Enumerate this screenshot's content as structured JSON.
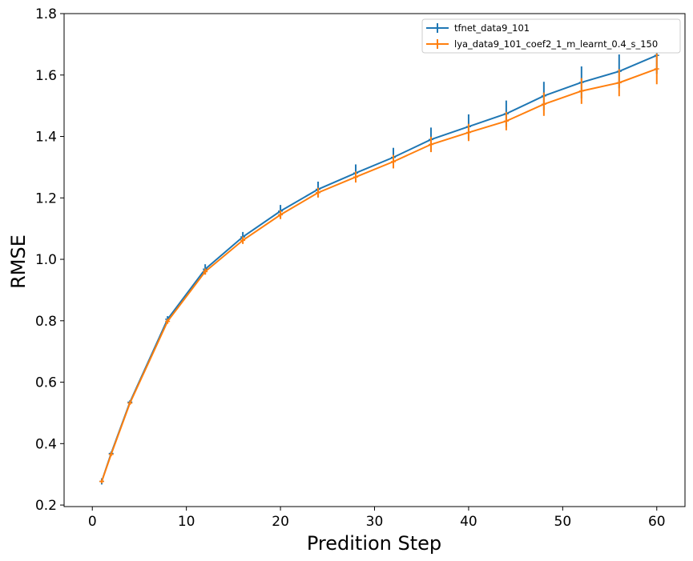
{
  "chart_data": {
    "type": "line",
    "xlabel": "Predition Step",
    "ylabel": "RMSE",
    "xlim": [
      -3,
      63
    ],
    "ylim": [
      0.195,
      1.8
    ],
    "xticks": [
      0,
      10,
      20,
      30,
      40,
      50,
      60
    ],
    "yticks": [
      0.2,
      0.4,
      0.6,
      0.8,
      1.0,
      1.2,
      1.4,
      1.6,
      1.8
    ],
    "ytick_labels": [
      "0.2",
      "0.4",
      "0.6",
      "0.8",
      "1.0",
      "1.2",
      "1.4",
      "1.6",
      "1.8"
    ],
    "x": [
      1,
      2,
      4,
      8,
      12,
      16,
      20,
      24,
      28,
      32,
      36,
      40,
      44,
      48,
      52,
      56,
      60
    ],
    "grid": false,
    "legend_position": "top-right",
    "series": [
      {
        "name": "tfnet_data9_101",
        "color": "#1f77b4",
        "values": [
          0.277,
          0.368,
          0.535,
          0.805,
          0.968,
          1.073,
          1.157,
          1.228,
          1.281,
          1.332,
          1.39,
          1.432,
          1.474,
          1.532,
          1.576,
          1.612,
          1.664
        ],
        "errors": [
          0.01,
          0.006,
          0.006,
          0.01,
          0.016,
          0.016,
          0.02,
          0.025,
          0.028,
          0.031,
          0.039,
          0.04,
          0.043,
          0.046,
          0.052,
          0.055,
          0.06
        ]
      },
      {
        "name": "lya_data9_101_coef2_1_m_learnt_0.4_s_150",
        "color": "#ff7f0e",
        "values": [
          0.277,
          0.365,
          0.532,
          0.798,
          0.96,
          1.062,
          1.145,
          1.217,
          1.268,
          1.318,
          1.374,
          1.413,
          1.45,
          1.505,
          1.548,
          1.575,
          1.62
        ],
        "errors": [
          0.006,
          0.006,
          0.006,
          0.008,
          0.01,
          0.012,
          0.014,
          0.016,
          0.018,
          0.022,
          0.025,
          0.028,
          0.03,
          0.038,
          0.042,
          0.044,
          0.05
        ]
      }
    ]
  }
}
